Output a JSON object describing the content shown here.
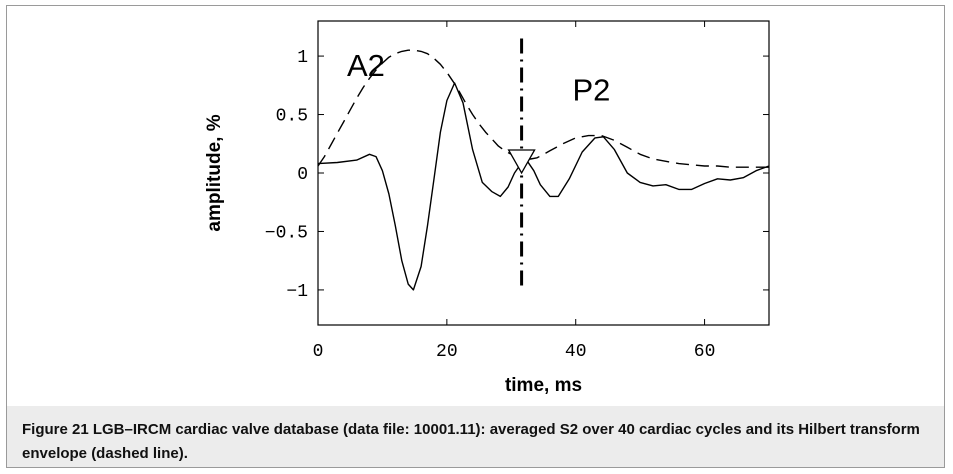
{
  "chart_data": {
    "type": "line",
    "xlabel": "time, ms",
    "ylabel": "amplitude, %",
    "xlim": [
      0,
      70
    ],
    "ylim": [
      -1.3,
      1.3
    ],
    "xticks": [
      0,
      20,
      40,
      60
    ],
    "yticks": [
      1,
      0.5,
      0,
      -0.5,
      -1
    ],
    "ytick_labels": [
      "1",
      "0.5",
      "0",
      "−0.5",
      "−1"
    ],
    "series": [
      {
        "style": "solid",
        "x": [
          0,
          3,
          6,
          8,
          9,
          10,
          11,
          12,
          13,
          14,
          14.8,
          16,
          17,
          18,
          19,
          20,
          21.2,
          22.5,
          24,
          25.5,
          27,
          28.3,
          29.5,
          30.5,
          31.5,
          32.5,
          33.5,
          34.5,
          36,
          37.3,
          39,
          41,
          43,
          44.3,
          46,
          48,
          50,
          52,
          54,
          56,
          58,
          60,
          62,
          64,
          66,
          68,
          70
        ],
        "y": [
          0.08,
          0.09,
          0.11,
          0.16,
          0.14,
          0.02,
          -0.18,
          -0.45,
          -0.75,
          -0.95,
          -1.0,
          -0.8,
          -0.45,
          -0.05,
          0.35,
          0.62,
          0.77,
          0.6,
          0.2,
          -0.08,
          -0.16,
          -0.2,
          -0.12,
          0.0,
          0.08,
          0.1,
          0.02,
          -0.1,
          -0.2,
          -0.2,
          -0.05,
          0.18,
          0.3,
          0.31,
          0.2,
          0.0,
          -0.08,
          -0.11,
          -0.1,
          -0.14,
          -0.14,
          -0.09,
          -0.05,
          -0.06,
          -0.04,
          0.02,
          0.06
        ]
      },
      {
        "style": "dashed",
        "x": [
          0,
          1,
          2,
          3,
          4,
          5,
          6,
          7,
          8,
          9,
          10,
          11,
          12,
          13,
          14,
          15,
          16,
          17,
          18,
          19,
          20,
          21,
          22,
          23,
          24,
          25,
          26,
          27,
          28,
          29,
          30,
          31,
          32,
          33,
          34,
          35,
          36,
          38,
          40,
          42,
          44,
          46,
          48,
          50,
          52,
          54,
          56,
          58,
          60,
          62,
          64,
          66,
          68,
          70
        ],
        "y": [
          0.06,
          0.14,
          0.24,
          0.34,
          0.44,
          0.54,
          0.64,
          0.73,
          0.81,
          0.88,
          0.94,
          0.99,
          1.02,
          1.04,
          1.05,
          1.05,
          1.04,
          1.02,
          0.98,
          0.93,
          0.86,
          0.78,
          0.69,
          0.59,
          0.5,
          0.42,
          0.35,
          0.29,
          0.23,
          0.19,
          0.16,
          0.14,
          0.12,
          0.12,
          0.13,
          0.16,
          0.19,
          0.25,
          0.3,
          0.32,
          0.32,
          0.28,
          0.22,
          0.16,
          0.12,
          0.1,
          0.08,
          0.07,
          0.06,
          0.06,
          0.05,
          0.05,
          0.05,
          0.05
        ]
      }
    ],
    "vline": {
      "x": 31.6,
      "style": "dash-dot"
    },
    "marker": {
      "x": 31.6,
      "y": 0.12,
      "shape": "triangle-down"
    },
    "annotations": [
      {
        "text": "A2",
        "x": 4.5,
        "y": 0.83
      },
      {
        "text": "P2",
        "x": 39.5,
        "y": 0.62
      }
    ],
    "grid": false
  },
  "caption": "Figure 21 LGB–IRCM cardiac valve database (data file: 10001.11): averaged S2 over 40 cardiac cycles and its Hilbert transform envelope (dashed line)."
}
